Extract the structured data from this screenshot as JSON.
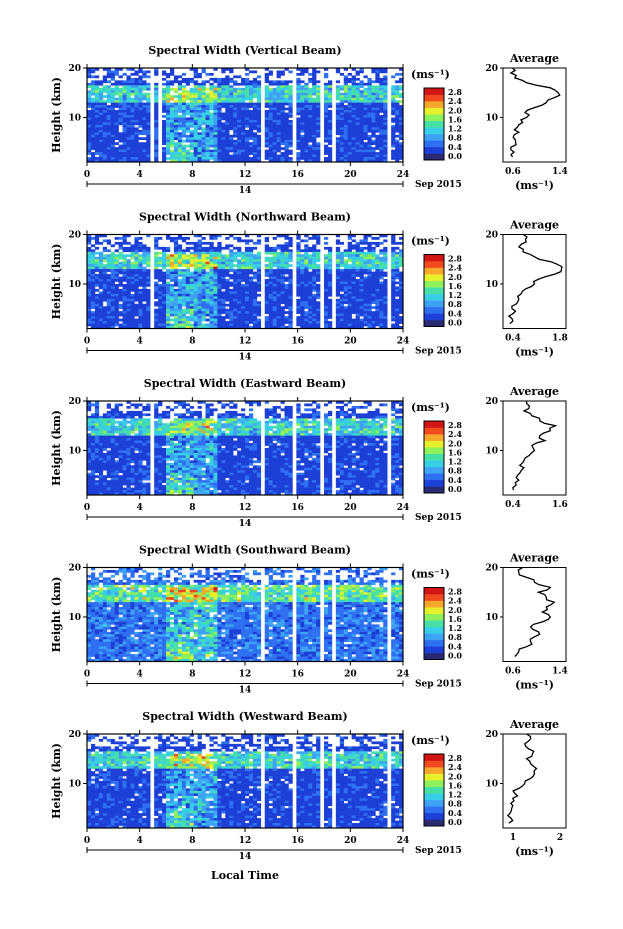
{
  "figure": {
    "date_label": "Sep 2015",
    "day_label": "14",
    "xlabel": "Local Time",
    "unit_label": "(ms⁻¹)",
    "profile_title": "Average"
  },
  "colorbar": {
    "ticks": [
      "0.0",
      "0.4",
      "0.8",
      "1.2",
      "1.6",
      "2.0",
      "2.4",
      "2.8"
    ],
    "colors": [
      "#2a2a72",
      "#1c3fd6",
      "#2f6ff2",
      "#3ea3f4",
      "#38cfe6",
      "#46e0a6",
      "#8ef05a",
      "#e6f02c",
      "#f7a82a",
      "#f04a1e",
      "#d11414"
    ]
  },
  "chart_data": [
    {
      "type": "heatmap",
      "title": "Spectral Width (Vertical Beam)",
      "ylabel": "Height (km)",
      "xlim": [
        0,
        24
      ],
      "ylim": [
        1,
        20
      ],
      "xticks": [
        0,
        4,
        8,
        12,
        16,
        20,
        24
      ],
      "yticks": [
        10,
        20
      ],
      "colorbar_range": [
        0.0,
        2.8
      ],
      "gaps": [
        [
          4.8,
          5.0
        ],
        [
          5.4,
          5.6
        ],
        [
          13.2,
          13.4
        ],
        [
          15.6,
          15.9
        ],
        [
          17.8,
          18.0
        ],
        [
          18.6,
          18.8
        ],
        [
          22.8,
          23.2
        ]
      ],
      "profile": {
        "xlim": [
          0.6,
          1.4
        ],
        "xticks": [
          "0.6",
          "1.4"
        ],
        "xlabel": "(ms⁻¹)",
        "heights": [
          2,
          3,
          4,
          5,
          6,
          7,
          8,
          9,
          10,
          11,
          12,
          13,
          14,
          15,
          16,
          17,
          18,
          19,
          20
        ],
        "values": [
          0.72,
          0.74,
          0.7,
          0.76,
          0.73,
          0.8,
          0.78,
          0.85,
          0.9,
          0.88,
          1.0,
          1.15,
          1.25,
          1.3,
          1.2,
          0.9,
          0.75,
          0.7,
          0.72
        ]
      }
    },
    {
      "type": "heatmap",
      "title": "Spectral Width (Northward Beam)",
      "ylabel": "Height (km)",
      "xlim": [
        0,
        24
      ],
      "ylim": [
        1,
        20
      ],
      "xticks": [
        0,
        4,
        8,
        12,
        16,
        20,
        24
      ],
      "yticks": [
        10,
        20
      ],
      "colorbar_range": [
        0.0,
        2.8
      ],
      "gaps": [
        [
          4.9,
          5.1
        ],
        [
          5.6,
          5.8
        ],
        [
          13.2,
          13.4
        ],
        [
          15.6,
          15.9
        ],
        [
          17.8,
          18.0
        ],
        [
          18.6,
          18.8
        ],
        [
          22.8,
          23.1
        ]
      ],
      "profile": {
        "xlim": [
          0.4,
          1.8
        ],
        "xticks": [
          "0.4",
          "1.8"
        ],
        "xlabel": "(ms⁻¹)",
        "heights": [
          2,
          3,
          4,
          5,
          6,
          7,
          8,
          9,
          10,
          11,
          12,
          13,
          14,
          15,
          16,
          17,
          18,
          19,
          20
        ],
        "values": [
          0.55,
          0.6,
          0.62,
          0.6,
          0.7,
          0.75,
          0.8,
          0.9,
          1.1,
          1.2,
          1.55,
          1.7,
          1.6,
          1.2,
          1.0,
          0.85,
          0.8,
          0.9,
          0.85
        ]
      }
    },
    {
      "type": "heatmap",
      "title": "Spectral Width (Eastward Beam)",
      "ylabel": "Height (km)",
      "xlim": [
        0,
        24
      ],
      "ylim": [
        1,
        20
      ],
      "xticks": [
        0,
        4,
        8,
        12,
        16,
        20,
        24
      ],
      "yticks": [
        10,
        20
      ],
      "colorbar_range": [
        0.0,
        2.8
      ],
      "gaps": [
        [
          4.9,
          5.1
        ],
        [
          5.6,
          5.8
        ],
        [
          13.2,
          13.4
        ],
        [
          15.6,
          15.9
        ],
        [
          17.8,
          18.0
        ],
        [
          18.6,
          18.8
        ],
        [
          22.8,
          23.1
        ]
      ],
      "profile": {
        "xlim": [
          0.4,
          1.6
        ],
        "xticks": [
          "0.4",
          "1.6"
        ],
        "xlabel": "",
        "heights": [
          2,
          3,
          4,
          5,
          6,
          7,
          8,
          9,
          10,
          11,
          12,
          13,
          14,
          15,
          16,
          17,
          18,
          19,
          20
        ],
        "values": [
          0.6,
          0.65,
          0.7,
          0.68,
          0.75,
          0.72,
          0.8,
          0.9,
          1.0,
          0.95,
          1.2,
          1.1,
          1.3,
          1.4,
          1.1,
          0.95,
          0.8,
          0.9,
          0.85
        ]
      }
    },
    {
      "type": "heatmap",
      "title": "Spectral Width (Southward Beam)",
      "ylabel": "Height (km)",
      "xlim": [
        0,
        24
      ],
      "ylim": [
        1,
        20
      ],
      "xticks": [
        0,
        4,
        8,
        12,
        16,
        20,
        24
      ],
      "yticks": [
        10,
        20
      ],
      "colorbar_range": [
        0.0,
        2.8
      ],
      "gaps": [
        [
          13.2,
          13.4
        ],
        [
          15.6,
          15.9
        ],
        [
          17.8,
          18.0
        ],
        [
          18.6,
          18.8
        ],
        [
          22.8,
          23.1
        ]
      ],
      "profile": {
        "xlim": [
          0.6,
          1.4
        ],
        "xticks": [
          "0.6",
          "1.4"
        ],
        "xlabel": "(ms⁻¹)",
        "heights": [
          2,
          3,
          4,
          5,
          6,
          7,
          8,
          9,
          10,
          11,
          12,
          13,
          14,
          15,
          16,
          17,
          18,
          19,
          20
        ],
        "values": [
          0.75,
          0.8,
          0.9,
          0.95,
          1.0,
          1.05,
          0.95,
          1.1,
          1.2,
          1.1,
          1.15,
          1.25,
          1.15,
          1.05,
          1.2,
          1.0,
          0.9,
          0.8,
          0.85
        ]
      }
    },
    {
      "type": "heatmap",
      "title": "Spectral Width (Westward Beam)",
      "ylabel": "Height (km)",
      "xlim": [
        0,
        24
      ],
      "ylim": [
        1,
        20
      ],
      "xticks": [
        0,
        4,
        8,
        12,
        16,
        20,
        24
      ],
      "yticks": [
        10,
        20
      ],
      "colorbar_range": [
        0.0,
        2.8
      ],
      "gaps": [
        [
          4.9,
          5.1
        ],
        [
          5.6,
          5.8
        ],
        [
          13.2,
          13.4
        ],
        [
          15.6,
          15.9
        ],
        [
          17.8,
          18.0
        ],
        [
          18.6,
          18.8
        ],
        [
          22.8,
          23.1
        ]
      ],
      "profile": {
        "xlim": [
          0.4,
          2.0
        ],
        "xticks": [
          "1",
          "2"
        ],
        "xlabel": "(ms⁻¹)",
        "heights": [
          2,
          3,
          4,
          5,
          6,
          7,
          8,
          9,
          10,
          11,
          12,
          13,
          14,
          15,
          16,
          17,
          18,
          19,
          20
        ],
        "values": [
          0.55,
          0.6,
          0.58,
          0.62,
          0.6,
          0.65,
          0.7,
          0.8,
          0.95,
          1.1,
          1.2,
          1.25,
          1.1,
          1.0,
          1.15,
          1.05,
          0.95,
          1.1,
          1.0
        ]
      }
    }
  ]
}
